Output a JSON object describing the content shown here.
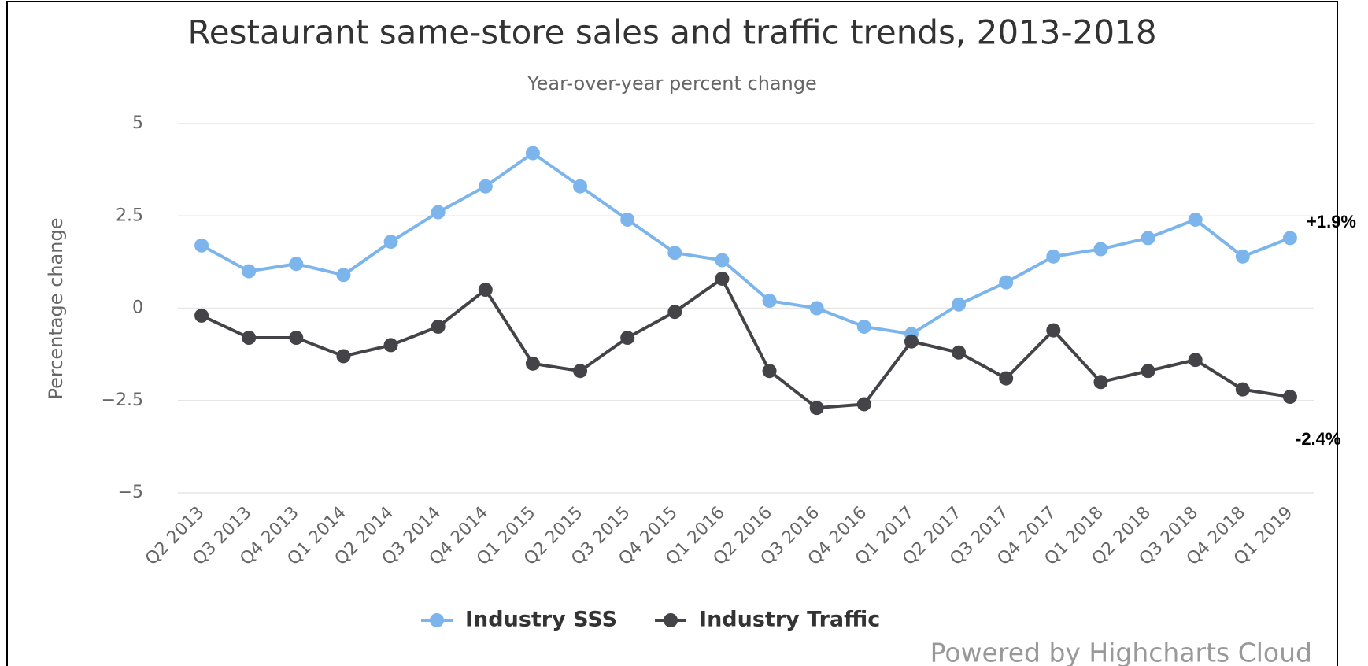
{
  "chart_data": {
    "type": "line",
    "title": "Restaurant same-store sales and traffic trends, 2013-2018",
    "subtitle": "Year-over-year percent change",
    "y_axis_label": "Percentage change",
    "categories": [
      "Q2 2013",
      "Q3 2013",
      "Q4 2013",
      "Q1 2014",
      "Q2 2014",
      "Q3 2014",
      "Q4 2014",
      "Q1 2015",
      "Q2 2015",
      "Q3 2015",
      "Q4 2015",
      "Q1 2016",
      "Q2 2016",
      "Q3 2016",
      "Q4 2016",
      "Q1 2017",
      "Q2 2017",
      "Q3 2017",
      "Q4 2017",
      "Q1 2018",
      "Q2 2018",
      "Q3 2018",
      "Q4 2018",
      "Q1 2019"
    ],
    "series": [
      {
        "name": "Industry SSS",
        "color": "#7cb5ec",
        "values": [
          1.7,
          1.0,
          1.2,
          0.9,
          1.8,
          2.6,
          3.3,
          4.2,
          3.3,
          2.4,
          1.5,
          1.3,
          0.2,
          0.0,
          -0.5,
          -0.7,
          0.1,
          0.7,
          1.4,
          1.6,
          1.9,
          2.4,
          1.4,
          1.9
        ]
      },
      {
        "name": "Industry Traffic",
        "color": "#434348",
        "values": [
          -0.2,
          -0.8,
          -0.8,
          -1.3,
          -1.0,
          -0.5,
          0.5,
          -1.5,
          -1.7,
          -0.8,
          -0.1,
          0.8,
          -1.7,
          -2.7,
          -2.6,
          -0.9,
          -1.2,
          -1.9,
          -0.6,
          -2.0,
          -1.7,
          -1.4,
          -2.2,
          -2.4
        ]
      }
    ],
    "ylim": [
      -5,
      5
    ],
    "yticks": [
      {
        "value": -5,
        "label": "−5"
      },
      {
        "value": -2.5,
        "label": "−2.5"
      },
      0,
      2.5,
      5
    ],
    "grid": true,
    "annotations": [
      "+1.9%",
      "-2.4%"
    ],
    "credit": "Powered by Highcharts Cloud"
  }
}
